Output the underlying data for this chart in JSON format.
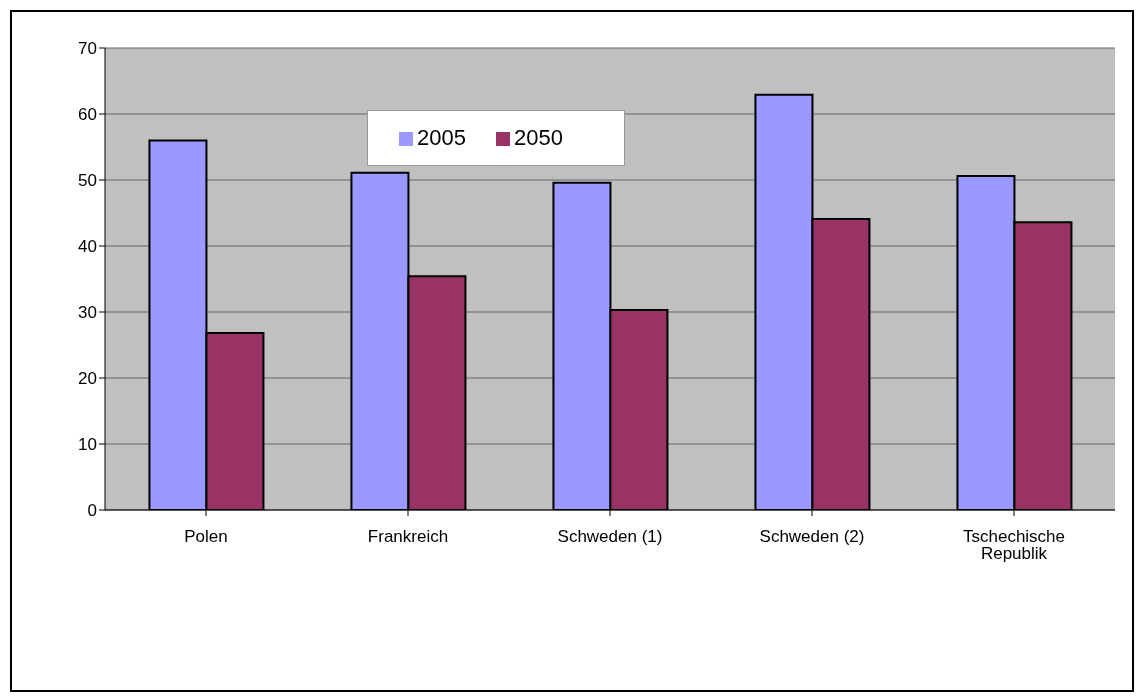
{
  "chart_data": {
    "type": "bar",
    "categories": [
      "Polen",
      "Frankreich",
      "Schweden (1)",
      "Schweden (2)",
      "Tschechische Republik"
    ],
    "series": [
      {
        "name": "2005",
        "color": "#9999ff",
        "values": [
          56,
          51.1,
          49.6,
          62.9,
          50.6
        ]
      },
      {
        "name": "2050",
        "color": "#993366",
        "values": [
          26.8,
          35.4,
          30.3,
          44.1,
          43.6
        ]
      }
    ],
    "ylim": [
      0,
      70
    ],
    "yticks": [
      0,
      10,
      20,
      30,
      40,
      50,
      60,
      70
    ],
    "grid": "y",
    "legend": "top"
  }
}
